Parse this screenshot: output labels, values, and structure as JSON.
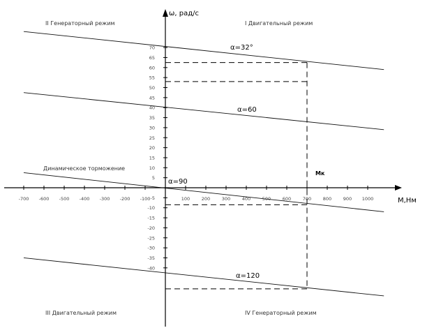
{
  "chart_data": {
    "type": "line",
    "xlabel": "M,Нм",
    "ylabel": "ω, рад/с",
    "xlim": [
      -700,
      1100
    ],
    "ylim": [
      -50,
      90
    ],
    "x_ticks": [
      -700,
      -600,
      -500,
      -400,
      -300,
      -200,
      -100,
      100,
      200,
      300,
      400,
      500,
      600,
      700,
      800,
      900,
      1000
    ],
    "y_ticks": [
      -40,
      -35,
      -30,
      -25,
      -20,
      -15,
      -10,
      -5,
      5,
      10,
      15,
      20,
      25,
      30,
      35,
      40,
      45,
      50,
      55,
      60,
      65,
      70
    ],
    "tick_labels": {
      "-700": "-700",
      "-600": "-600",
      "-500": "-500",
      "-400": "-400",
      "-300": "-300",
      "-200": "-200",
      "-100": "-100",
      "100": "100",
      "200": "200",
      "300": "300",
      "400": "400",
      "500": "500",
      "600": "600",
      "700": "700",
      "800": "800",
      "900": "900",
      "1000": "1000",
      "y-40": "-40",
      "y-35": "-35",
      "y-30": "-30",
      "y-25": "-25",
      "y-20": "-20",
      "y-15": "-15",
      "y-10": "-10",
      "y-5": "-5",
      "y5": "5",
      "y10": "10",
      "y15": "15",
      "y20": "20",
      "y25": "25",
      "y30": "30",
      "y35": "35",
      "y40": "40",
      "y45": "45",
      "y50": "50",
      "y55": "55",
      "y60": "60",
      "y65": "65",
      "y70": "70"
    },
    "series": [
      {
        "name": "α=32°",
        "x": [
          -700,
          1080
        ],
        "y": [
          78,
          59
        ]
      },
      {
        "name": "α=60",
        "x": [
          -700,
          1080
        ],
        "y": [
          47.5,
          29
        ]
      },
      {
        "name": "α=90",
        "x": [
          -700,
          1080
        ],
        "y": [
          7.5,
          -12
        ]
      },
      {
        "name": "α=120",
        "x": [
          -700,
          1080
        ],
        "y": [
          -35,
          -54
        ]
      }
    ],
    "annotations": {
      "mk_label": "Mк",
      "mk_x": 700,
      "dashed_levels": [
        62.5,
        53,
        -8.5,
        -50.5
      ]
    },
    "grid": false
  },
  "quadrants": {
    "q1": "I Двигательный режим",
    "q2": "II Генераторный режим",
    "q3": "III Двигательный режим",
    "q4": "IV Генераторный режим"
  },
  "braking_label": "Динамическое торможение"
}
